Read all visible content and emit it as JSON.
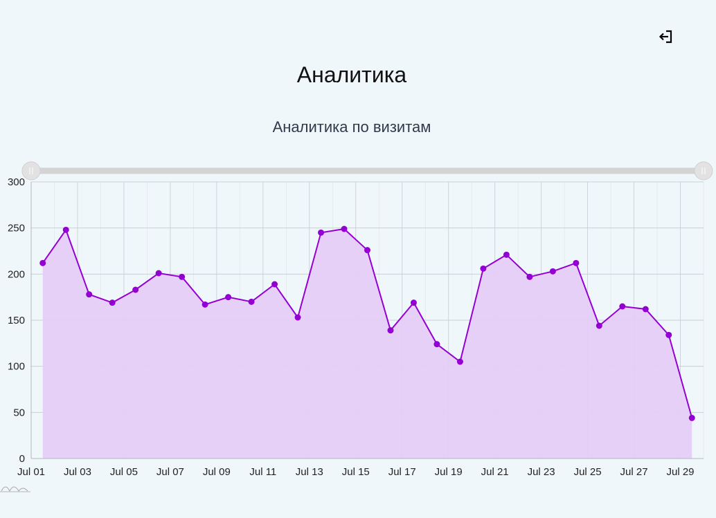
{
  "header": {
    "title": "Аналитика",
    "logout_icon": "logout-icon"
  },
  "chart_title": "Аналитика по визитам",
  "colors": {
    "line": "#9400d3",
    "fill": "#e6cdf7",
    "grid": "#c8d0d6",
    "slider_track": "#d4d4d4",
    "slider_handle": "#e2e2e2"
  },
  "chart_data": {
    "type": "area",
    "title": "Аналитика по визитам",
    "xlabel": "",
    "ylabel": "",
    "ylim": [
      0,
      300
    ],
    "yticks": [
      0,
      50,
      100,
      150,
      200,
      250,
      300
    ],
    "xlim": [
      "Jul 01",
      "Jul 30"
    ],
    "xticks": [
      "Jul 01",
      "Jul 03",
      "Jul 05",
      "Jul 07",
      "Jul 09",
      "Jul 11",
      "Jul 13",
      "Jul 15",
      "Jul 17",
      "Jul 19",
      "Jul 21",
      "Jul 23",
      "Jul 25",
      "Jul 27",
      "Jul 29"
    ],
    "grid": true,
    "legend": "none",
    "series": [
      {
        "x": [
          "Jul 01 12:00",
          "Jul 02 12:00",
          "Jul 03 12:00",
          "Jul 04 12:00",
          "Jul 05 12:00",
          "Jul 06 12:00",
          "Jul 07 12:00",
          "Jul 08 12:00",
          "Jul 09 12:00",
          "Jul 10 12:00",
          "Jul 11 12:00",
          "Jul 12 12:00",
          "Jul 13 12:00",
          "Jul 14 12:00",
          "Jul 15 12:00",
          "Jul 16 12:00",
          "Jul 17 12:00",
          "Jul 18 12:00",
          "Jul 19 12:00",
          "Jul 20 12:00",
          "Jul 21 12:00",
          "Jul 22 12:00",
          "Jul 23 12:00",
          "Jul 24 12:00",
          "Jul 25 12:00",
          "Jul 26 12:00",
          "Jul 27 12:00",
          "Jul 28 12:00",
          "Jul 29 12:00"
        ],
        "values": [
          212,
          248,
          178,
          169,
          183,
          201,
          197,
          167,
          175,
          170,
          189,
          153,
          245,
          249,
          226,
          139,
          169,
          124,
          105,
          206,
          221,
          197,
          203,
          212,
          144,
          165,
          162,
          134,
          44
        ]
      }
    ]
  }
}
